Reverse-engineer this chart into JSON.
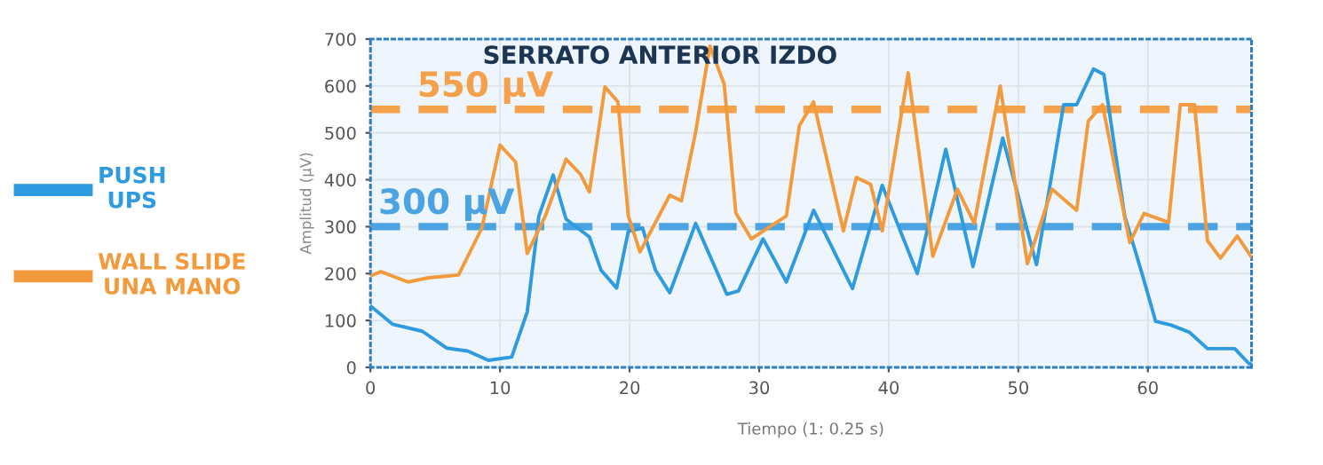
{
  "chart_data": {
    "type": "line",
    "title": "SERRATO ANTERIOR IZDO",
    "xlabel": "Tiempo (1: 0.25 s)",
    "ylabel": "Amplitud (µV)",
    "xlim": [
      0,
      68
    ],
    "xticks": [
      0,
      10,
      20,
      30,
      40,
      50,
      60
    ],
    "ylim": [
      0,
      700
    ],
    "yticks": [
      0,
      100,
      200,
      300,
      400,
      500,
      600,
      700
    ],
    "grid": true,
    "legend": "left",
    "marker": "none",
    "line_style": "solid",
    "series": [
      {
        "name": "PUSH\nUPS",
        "color": "#2e9be0",
        "x": [
          0,
          1.7,
          4,
          5.9,
          7.5,
          9.1,
          10.9,
          12.1,
          13,
          14.1,
          15.1,
          16.9,
          17.8,
          19,
          19.9,
          21,
          22,
          23.1,
          25.1,
          27.5,
          28.4,
          30.3,
          32.1,
          34.2,
          37.2,
          39.5,
          42.2,
          44.4,
          46.5,
          48.8,
          51.4,
          53.5,
          54.5,
          55.8,
          56.6,
          58.2,
          59.6,
          60.6,
          61.8,
          63.2,
          64.6,
          66.7,
          67.8,
          68
        ],
        "values": [
          131,
          92,
          77,
          41,
          35,
          15,
          22,
          118,
          323,
          410,
          316,
          278,
          207,
          169,
          290,
          297,
          207,
          159,
          307,
          156,
          163,
          274,
          182,
          335,
          168,
          388,
          200,
          465,
          215,
          489,
          219,
          560,
          560,
          636,
          625,
          324,
          195,
          98,
          90,
          75,
          40,
          40,
          8,
          8
        ]
      },
      {
        "name": "WALL SLIDE\nUNA MANO",
        "color": "#f39a3c",
        "x": [
          0,
          0.8,
          2.9,
          4.5,
          6.8,
          8.6,
          10,
          11.2,
          12.1,
          13.5,
          15.1,
          16.2,
          16.9,
          18.1,
          19.1,
          19.9,
          20.8,
          23.1,
          24,
          25.1,
          26.2,
          27.3,
          28.2,
          29.4,
          32.1,
          33.1,
          34.2,
          36.5,
          37.5,
          38.6,
          39.5,
          41.5,
          43.4,
          45.3,
          46.6,
          48.6,
          50.7,
          52.6,
          54.5,
          55.4,
          56.5,
          58.6,
          59.7,
          61.6,
          62.5,
          63.6,
          64.6,
          65.6,
          66.9,
          68
        ],
        "values": [
          195,
          204,
          182,
          191,
          197,
          297,
          474,
          438,
          243,
          323,
          444,
          412,
          374,
          598,
          566,
          323,
          246,
          367,
          355,
          502,
          685,
          604,
          329,
          274,
          323,
          515,
          566,
          291,
          405,
          390,
          291,
          628,
          237,
          380,
          307,
          600,
          221,
          380,
          335,
          525,
          560,
          266,
          328,
          309,
          560,
          560,
          270,
          233,
          280,
          235
        ]
      }
    ],
    "ref_lines": [
      {
        "axis": "y",
        "value": 300,
        "label": "300 µV",
        "color": "#4ba3e3",
        "line_style": "dashed"
      },
      {
        "axis": "y",
        "value": 550,
        "label": "550 µV",
        "color": "#f5a04a",
        "line_style": "dashed"
      }
    ]
  }
}
